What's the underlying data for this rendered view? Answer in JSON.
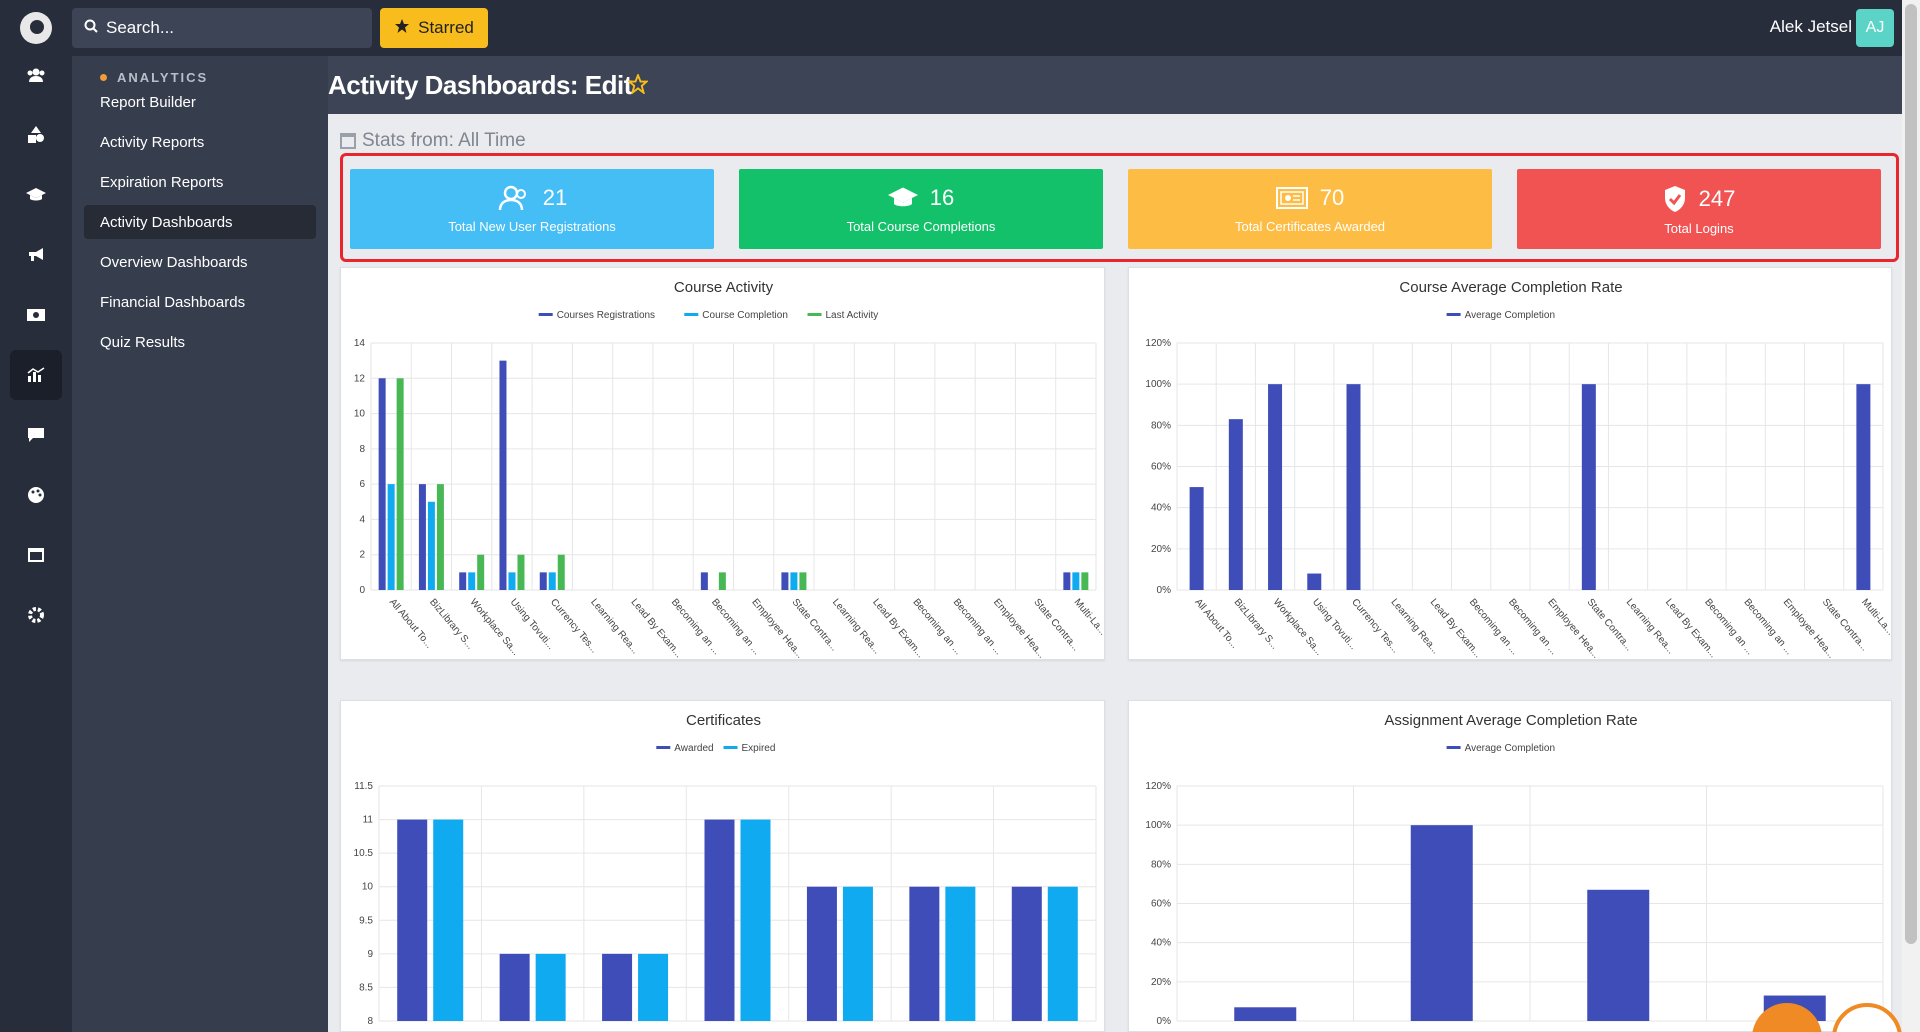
{
  "topbar": {
    "search_placeholder": "Search...",
    "starred_label": "Starred",
    "user_name": "Alek Jetsel",
    "user_initials": "AJ"
  },
  "subnav": {
    "heading": "ANALYTICS",
    "items": [
      {
        "label": "Report Builder"
      },
      {
        "label": "Activity Reports"
      },
      {
        "label": "Expiration Reports"
      },
      {
        "label": "Activity Dashboards"
      },
      {
        "label": "Overview Dashboards"
      },
      {
        "label": "Financial Dashboards"
      },
      {
        "label": "Quiz Results"
      }
    ]
  },
  "page": {
    "title": "Activity Dashboards: Edit",
    "stats_from": "Stats from: All Time"
  },
  "cards": [
    {
      "value": "21",
      "label": "Total New User Registrations",
      "color": "#45bdf5",
      "icon": "users-icon"
    },
    {
      "value": "16",
      "label": "Total Course Completions",
      "color": "#13c16a",
      "icon": "graduation-cap-icon"
    },
    {
      "value": "70",
      "label": "Total Certificates Awarded",
      "color": "#fdbd45",
      "icon": "certificate-icon"
    },
    {
      "value": "247",
      "label": "Total Logins",
      "color": "#f15353",
      "icon": "shield-check-icon"
    }
  ],
  "colors": {
    "series_dark": "#3f4db8",
    "series_light": "#10aaf0",
    "series_green": "#48b855"
  },
  "chart_data": [
    {
      "type": "bar",
      "title": "Course Activity",
      "categories": [
        "All About To...",
        "BizLibrary S...",
        "Workplace Sa...",
        "Using Tovuti...",
        "Currency Tes...",
        "Learning Rea...",
        "Lead By Exam...",
        "Becoming an ...",
        "Becoming an ...",
        "Employee Hea...",
        "State Contra...",
        "Learning Rea...",
        "Lead By Exam...",
        "Becoming an ...",
        "Becoming an ...",
        "Employee Hea...",
        "State Contra...",
        "Multi-La..."
      ],
      "series": [
        {
          "name": "Courses Registrations",
          "values": [
            12,
            6,
            1,
            13,
            1,
            0,
            0,
            0,
            1,
            0,
            1,
            0,
            0,
            0,
            0,
            0,
            0,
            1
          ]
        },
        {
          "name": "Course Completion",
          "values": [
            6,
            5,
            1,
            1,
            1,
            0,
            0,
            0,
            0,
            0,
            1,
            0,
            0,
            0,
            0,
            0,
            0,
            1
          ]
        },
        {
          "name": "Last Activity",
          "values": [
            12,
            6,
            2,
            2,
            2,
            0,
            0,
            0,
            1,
            0,
            1,
            0,
            0,
            0,
            0,
            0,
            0,
            1
          ]
        }
      ],
      "ylim": [
        0,
        14
      ],
      "yticks": [
        "0",
        "2",
        "4",
        "6",
        "8",
        "10",
        "12",
        "14"
      ]
    },
    {
      "type": "bar",
      "title": "Course Average Completion Rate",
      "categories": [
        "All About To...",
        "BizLibrary S...",
        "Workplace Sa...",
        "Using Tovuti...",
        "Currency Tes...",
        "Learning Rea...",
        "Lead By Exam...",
        "Becoming an ...",
        "Becoming an ...",
        "Employee Hea...",
        "State Contra...",
        "Learning Rea...",
        "Lead By Exam...",
        "Becoming an ...",
        "Becoming an ...",
        "Employee Hea...",
        "State Contra...",
        "Multi-La..."
      ],
      "series": [
        {
          "name": "Average Completion",
          "values": [
            50,
            83,
            100,
            8,
            100,
            0,
            0,
            0,
            0,
            0,
            100,
            0,
            0,
            0,
            0,
            0,
            0,
            100
          ]
        }
      ],
      "ylim": [
        0,
        120
      ],
      "yticks": [
        "0%",
        "20%",
        "40%",
        "60%",
        "80%",
        "100%",
        "120%"
      ]
    },
    {
      "type": "bar",
      "title": "Certificates",
      "categories": [
        "",
        "",
        "",
        "",
        "",
        "",
        ""
      ],
      "series": [
        {
          "name": "Awarded",
          "values": [
            11,
            9,
            9,
            11,
            10,
            10,
            10
          ]
        },
        {
          "name": "Expired",
          "values": [
            11,
            9,
            9,
            11,
            10,
            10,
            10
          ]
        }
      ],
      "ylim": [
        8,
        11.5
      ],
      "yticks": [
        "8",
        "8.5",
        "9",
        "9.5",
        "10",
        "10.5",
        "11",
        "11.5"
      ]
    },
    {
      "type": "bar",
      "title": "Assignment Average Completion Rate",
      "categories": [
        "",
        "",
        "",
        ""
      ],
      "series": [
        {
          "name": "Average Completion",
          "values": [
            7,
            100,
            67,
            13
          ]
        }
      ],
      "ylim": [
        0,
        120
      ],
      "yticks": [
        "0%",
        "20%",
        "40%",
        "60%",
        "80%",
        "100%",
        "120%"
      ]
    }
  ]
}
